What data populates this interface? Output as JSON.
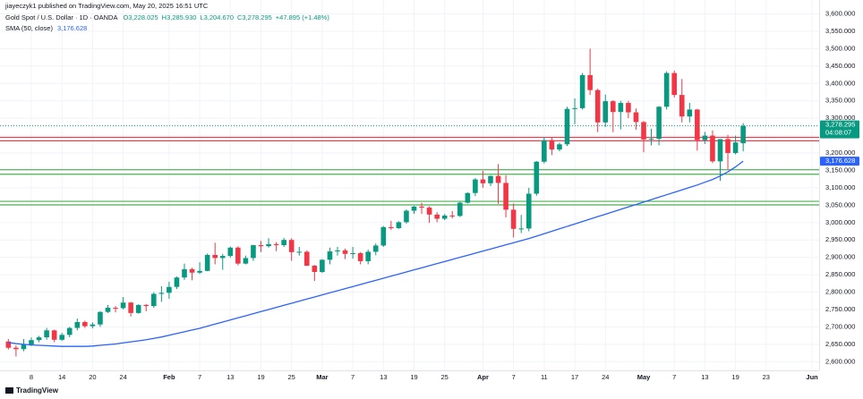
{
  "chart_data": {
    "type": "candlestick",
    "published": "jiayeczyk1 published on TradingView.com, May 20, 2025 16:51 UTC",
    "symbol": "Gold Spot / U.S. Dollar · 1D · OANDA",
    "ohlc_labels": [
      "O3,228.025",
      "H3,285.930",
      "L3,204.670",
      "C3,278.295"
    ],
    "change_label": "+47.895 (+1.48%)",
    "indicator": "SMA (50, close)",
    "indicator_value_label": "3,176.628",
    "last_price_label": "3,278.295",
    "countdown": "04:08:07",
    "footer": "TradingView",
    "up_color": "#089981",
    "down_color": "#f23645",
    "sma_color": "#2962ff",
    "categories": [
      "2025-01-03",
      "2025-01-06",
      "2025-01-07",
      "2025-01-08",
      "2025-01-09",
      "2025-01-10",
      "2025-01-13",
      "2025-01-14",
      "2025-01-15",
      "2025-01-16",
      "2025-01-17",
      "2025-01-20",
      "2025-01-21",
      "2025-01-22",
      "2025-01-23",
      "2025-01-24",
      "2025-01-27",
      "2025-01-28",
      "2025-01-29",
      "2025-01-30",
      "2025-01-31",
      "2025-02-03",
      "2025-02-04",
      "2025-02-05",
      "2025-02-06",
      "2025-02-07",
      "2025-02-10",
      "2025-02-11",
      "2025-02-12",
      "2025-02-13",
      "2025-02-14",
      "2025-02-17",
      "2025-02-18",
      "2025-02-19",
      "2025-02-20",
      "2025-02-21",
      "2025-02-24",
      "2025-02-25",
      "2025-02-26",
      "2025-02-27",
      "2025-02-28",
      "2025-03-03",
      "2025-03-04",
      "2025-03-05",
      "2025-03-06",
      "2025-03-07",
      "2025-03-10",
      "2025-03-11",
      "2025-03-12",
      "2025-03-13",
      "2025-03-14",
      "2025-03-17",
      "2025-03-18",
      "2025-03-19",
      "2025-03-20",
      "2025-03-21",
      "2025-03-24",
      "2025-03-25",
      "2025-03-26",
      "2025-03-27",
      "2025-03-28",
      "2025-03-31",
      "2025-04-01",
      "2025-04-02",
      "2025-04-03",
      "2025-04-04",
      "2025-04-07",
      "2025-04-08",
      "2025-04-09",
      "2025-04-10",
      "2025-04-11",
      "2025-04-14",
      "2025-04-15",
      "2025-04-16",
      "2025-04-17",
      "2025-04-21",
      "2025-04-22",
      "2025-04-23",
      "2025-04-24",
      "2025-04-25",
      "2025-04-28",
      "2025-04-29",
      "2025-04-30",
      "2025-05-01",
      "2025-05-02",
      "2025-05-05",
      "2025-05-06",
      "2025-05-07",
      "2025-05-08",
      "2025-05-09",
      "2025-05-12",
      "2025-05-13",
      "2025-05-14",
      "2025-05-15",
      "2025-05-16",
      "2025-05-19",
      "2025-05-20"
    ],
    "candles": [
      [
        2658,
        2665,
        2635,
        2640
      ],
      [
        2640,
        2647,
        2615,
        2636
      ],
      [
        2636,
        2665,
        2630,
        2649
      ],
      [
        2649,
        2670,
        2645,
        2662
      ],
      [
        2662,
        2674,
        2656,
        2670
      ],
      [
        2670,
        2697,
        2663,
        2690
      ],
      [
        2690,
        2692,
        2656,
        2663
      ],
      [
        2663,
        2683,
        2660,
        2677
      ],
      [
        2677,
        2700,
        2670,
        2697
      ],
      [
        2697,
        2724,
        2690,
        2714
      ],
      [
        2714,
        2718,
        2697,
        2702
      ],
      [
        2702,
        2713,
        2696,
        2707
      ],
      [
        2707,
        2745,
        2700,
        2743
      ],
      [
        2743,
        2763,
        2740,
        2755
      ],
      [
        2755,
        2760,
        2742,
        2754
      ],
      [
        2754,
        2786,
        2750,
        2770
      ],
      [
        2770,
        2772,
        2730,
        2740
      ],
      [
        2740,
        2765,
        2738,
        2763
      ],
      [
        2763,
        2766,
        2745,
        2760
      ],
      [
        2760,
        2800,
        2755,
        2795
      ],
      [
        2795,
        2817,
        2772,
        2798
      ],
      [
        2798,
        2830,
        2781,
        2815
      ],
      [
        2815,
        2845,
        2809,
        2842
      ],
      [
        2842,
        2882,
        2835,
        2866
      ],
      [
        2866,
        2870,
        2834,
        2856
      ],
      [
        2856,
        2886,
        2852,
        2861
      ],
      [
        2861,
        2911,
        2860,
        2907
      ],
      [
        2907,
        2942,
        2880,
        2898
      ],
      [
        2898,
        2910,
        2864,
        2904
      ],
      [
        2904,
        2931,
        2899,
        2928
      ],
      [
        2928,
        2932,
        2877,
        2882
      ],
      [
        2882,
        2905,
        2880,
        2898
      ],
      [
        2898,
        2936,
        2890,
        2935
      ],
      [
        2935,
        2947,
        2915,
        2932
      ],
      [
        2932,
        2955,
        2928,
        2938
      ],
      [
        2938,
        2944,
        2918,
        2935
      ],
      [
        2935,
        2956,
        2930,
        2950
      ],
      [
        2950,
        2955,
        2890,
        2915
      ],
      [
        2915,
        2930,
        2905,
        2916
      ],
      [
        2916,
        2920,
        2875,
        2876
      ],
      [
        2876,
        2878,
        2832,
        2858
      ],
      [
        2858,
        2895,
        2855,
        2893
      ],
      [
        2893,
        2928,
        2880,
        2917
      ],
      [
        2917,
        2930,
        2905,
        2920
      ],
      [
        2920,
        2925,
        2895,
        2910
      ],
      [
        2910,
        2930,
        2896,
        2912
      ],
      [
        2912,
        2915,
        2880,
        2889
      ],
      [
        2889,
        2922,
        2880,
        2916
      ],
      [
        2916,
        2940,
        2906,
        2934
      ],
      [
        2934,
        2990,
        2930,
        2987
      ],
      [
        2987,
        3005,
        2979,
        2984
      ],
      [
        2984,
        3004,
        2982,
        3001
      ],
      [
        3001,
        3038,
        2997,
        3034
      ],
      [
        3034,
        3048,
        3025,
        3046
      ],
      [
        3046,
        3057,
        3025,
        3043
      ],
      [
        3043,
        3047,
        2999,
        3023
      ],
      [
        3023,
        3030,
        3001,
        3011
      ],
      [
        3011,
        3025,
        3007,
        3020
      ],
      [
        3020,
        3033,
        3012,
        3019
      ],
      [
        3019,
        3060,
        3016,
        3057
      ],
      [
        3057,
        3087,
        3055,
        3085
      ],
      [
        3085,
        3128,
        3076,
        3124
      ],
      [
        3124,
        3149,
        3100,
        3113
      ],
      [
        3113,
        3135,
        3105,
        3134
      ],
      [
        3134,
        3168,
        3054,
        3114
      ],
      [
        3114,
        3136,
        3015,
        3037
      ],
      [
        3037,
        3055,
        2957,
        2982
      ],
      [
        2982,
        3022,
        2970,
        2983
      ],
      [
        2983,
        3100,
        2975,
        3083
      ],
      [
        3083,
        3177,
        3077,
        3175
      ],
      [
        3175,
        3245,
        3170,
        3237
      ],
      [
        3237,
        3245,
        3194,
        3210
      ],
      [
        3210,
        3230,
        3205,
        3225
      ],
      [
        3225,
        3333,
        3220,
        3327
      ],
      [
        3327,
        3357,
        3283,
        3329
      ],
      [
        3329,
        3430,
        3325,
        3424
      ],
      [
        3424,
        3500,
        3367,
        3381
      ],
      [
        3381,
        3385,
        3260,
        3288
      ],
      [
        3288,
        3368,
        3275,
        3349
      ],
      [
        3349,
        3352,
        3260,
        3318
      ],
      [
        3318,
        3350,
        3268,
        3344
      ],
      [
        3344,
        3350,
        3300,
        3317
      ],
      [
        3317,
        3328,
        3267,
        3289
      ],
      [
        3289,
        3292,
        3202,
        3239
      ],
      [
        3239,
        3270,
        3222,
        3241
      ],
      [
        3241,
        3335,
        3222,
        3333
      ],
      [
        3333,
        3435,
        3325,
        3430
      ],
      [
        3430,
        3437,
        3360,
        3367
      ],
      [
        3367,
        3413,
        3288,
        3305
      ],
      [
        3305,
        3344,
        3288,
        3325
      ],
      [
        3325,
        3327,
        3207,
        3237
      ],
      [
        3237,
        3261,
        3226,
        3250
      ],
      [
        3250,
        3265,
        3171,
        3176
      ],
      [
        3176,
        3240,
        3120,
        3240
      ],
      [
        3240,
        3252,
        3153,
        3200
      ],
      [
        3200,
        3250,
        3196,
        3230.4
      ],
      [
        3228.025,
        3285.93,
        3204.67,
        3278.295
      ]
    ],
    "sma": [
      2655,
      2652,
      2650,
      2648,
      2647,
      2646,
      2645,
      2644,
      2644,
      2644,
      2644,
      2645,
      2647,
      2649,
      2651,
      2654,
      2657,
      2660,
      2663,
      2667,
      2671,
      2676,
      2681,
      2686,
      2691,
      2696,
      2702,
      2708,
      2714,
      2720,
      2726,
      2732,
      2738,
      2744,
      2750,
      2756,
      2762,
      2768,
      2774,
      2780,
      2786,
      2792,
      2798,
      2804,
      2810,
      2816,
      2822,
      2828,
      2834,
      2840,
      2846,
      2852,
      2858,
      2864,
      2870,
      2876,
      2882,
      2888,
      2894,
      2900,
      2906,
      2912,
      2918,
      2924,
      2930,
      2936,
      2942,
      2948,
      2954,
      2961,
      2968,
      2975,
      2982,
      2989,
      2996,
      3003,
      3010,
      3017,
      3024,
      3031,
      3038,
      3045,
      3052,
      3059,
      3066,
      3073,
      3080,
      3087,
      3094,
      3101,
      3108,
      3116,
      3124,
      3134,
      3146,
      3160,
      3176.628
    ],
    "levels": [
      {
        "value": 3245,
        "color": "#f23645"
      },
      {
        "value": 3235,
        "color": "#f23645"
      },
      {
        "value": 3152,
        "color": "#4caf50"
      },
      {
        "value": 3139,
        "color": "#4caf50"
      },
      {
        "value": 3061,
        "color": "#4caf50"
      },
      {
        "value": 3051,
        "color": "#4caf50"
      }
    ],
    "ylim": [
      2575,
      3640
    ],
    "yticks": [
      {
        "value": 2600,
        "label": "2,600.000"
      },
      {
        "value": 2650,
        "label": "2,650.000"
      },
      {
        "value": 2700,
        "label": "2,700.000"
      },
      {
        "value": 2750,
        "label": "2,750.000"
      },
      {
        "value": 2800,
        "label": "2,800.000"
      },
      {
        "value": 2850,
        "label": "2,850.000"
      },
      {
        "value": 2900,
        "label": "2,900.000"
      },
      {
        "value": 2950,
        "label": "2,950.000"
      },
      {
        "value": 3000,
        "label": "3,000.000"
      },
      {
        "value": 3050,
        "label": "3,050.000"
      },
      {
        "value": 3100,
        "label": "3,100.000"
      },
      {
        "value": 3150,
        "label": "3,150.000"
      },
      {
        "value": 3200,
        "label": "3,200.000"
      },
      {
        "value": 3250,
        "label": "3,250.000"
      },
      {
        "value": 3300,
        "label": "3,300.000"
      },
      {
        "value": 3350,
        "label": "3,350.000"
      },
      {
        "value": 3400,
        "label": "3,400.000"
      },
      {
        "value": 3450,
        "label": "3,450.000"
      },
      {
        "value": 3500,
        "label": "3,500.000"
      },
      {
        "value": 3550,
        "label": "3,550.000"
      },
      {
        "value": 3600,
        "label": "3,600.000"
      }
    ],
    "xticks": [
      {
        "value": "2025-01-08",
        "label": "8"
      },
      {
        "value": "2025-01-14",
        "label": "14"
      },
      {
        "value": "2025-01-20",
        "label": "20"
      },
      {
        "value": "2025-01-24",
        "label": "24"
      },
      {
        "value": "2025-02-03",
        "label": "Feb"
      },
      {
        "value": "2025-02-07",
        "label": "7"
      },
      {
        "value": "2025-02-13",
        "label": "13"
      },
      {
        "value": "2025-02-19",
        "label": "19"
      },
      {
        "value": "2025-02-25",
        "label": "25"
      },
      {
        "value": "2025-03-03",
        "label": "Mar"
      },
      {
        "value": "2025-03-07",
        "label": "7"
      },
      {
        "value": "2025-03-13",
        "label": "13"
      },
      {
        "value": "2025-03-19",
        "label": "19"
      },
      {
        "value": "2025-03-25",
        "label": "25"
      },
      {
        "value": "2025-04-01",
        "label": "Apr"
      },
      {
        "value": "2025-04-07",
        "label": "7"
      },
      {
        "value": "2025-04-11",
        "label": "11"
      },
      {
        "value": "2025-04-17",
        "label": "17"
      },
      {
        "value": "2025-04-24",
        "label": "24"
      },
      {
        "value": "2025-05-01",
        "label": "May"
      },
      {
        "value": "2025-05-07",
        "label": "7"
      },
      {
        "value": "2025-05-13",
        "label": "13"
      },
      {
        "value": "2025-05-19",
        "label": "19"
      },
      {
        "value": "2025-05-23",
        "label": "23"
      },
      {
        "value": "2025-06-02",
        "label": "Jun"
      }
    ],
    "grid": true
  }
}
